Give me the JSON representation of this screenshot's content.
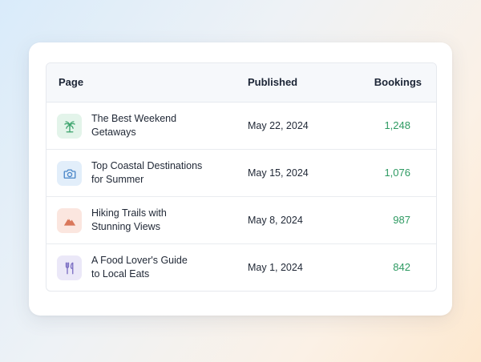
{
  "table": {
    "headers": {
      "page": "Page",
      "published": "Published",
      "bookings": "Bookings"
    },
    "rows": [
      {
        "title_line1": "The Best Weekend",
        "title_line2": "Getaways",
        "published": "May 22, 2024",
        "bookings": "1,248",
        "icon": "palm-tree-icon",
        "icon_bg": "#e3f4ea",
        "icon_color": "#3aa26b"
      },
      {
        "title_line1": "Top Coastal Destinations",
        "title_line2": "for Summer",
        "published": "May 15, 2024",
        "bookings": "1,076",
        "icon": "camera-icon",
        "icon_bg": "#e2eefa",
        "icon_color": "#4a86c8"
      },
      {
        "title_line1": "Hiking Trails with",
        "title_line2": "Stunning Views",
        "published": "May 8, 2024",
        "bookings": "987",
        "icon": "mountain-icon",
        "icon_bg": "#fbe6df",
        "icon_color": "#d9775a"
      },
      {
        "title_line1": "A Food Lover's Guide",
        "title_line2": "to Local Eats",
        "published": "May 1, 2024",
        "bookings": "842",
        "icon": "fork-knife-icon",
        "icon_bg": "#ebe8f8",
        "icon_color": "#7d70c4"
      }
    ]
  },
  "colors": {
    "bookings_value": "#2e9a62",
    "header_bg": "#f6f8fb"
  }
}
